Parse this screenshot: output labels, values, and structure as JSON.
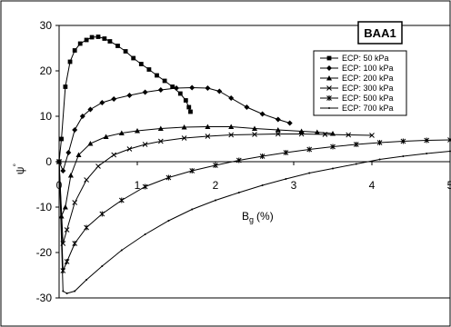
{
  "chart_data": {
    "type": "line",
    "title": "",
    "annotation": "BAA1",
    "xlabel": "B",
    "xlabel_sub": "g",
    "xlabel_unit": "(%)",
    "ylabel": "ψ",
    "ylabel_sup": "°",
    "xlim": [
      0,
      5
    ],
    "ylim": [
      -30,
      30
    ],
    "xticks": [
      "0",
      "1",
      "2",
      "3",
      "4",
      "5"
    ],
    "yticks": [
      "30",
      "20",
      "10",
      "0",
      "-10",
      "-20",
      "-30"
    ],
    "grid": false,
    "legend_position": "top-right",
    "series": [
      {
        "name": "ECP: 50 kPa",
        "marker": "square",
        "x": [
          0.0,
          0.03,
          0.08,
          0.14,
          0.2,
          0.27,
          0.35,
          0.42,
          0.5,
          0.58,
          0.65,
          0.75,
          0.85,
          0.95,
          1.05,
          1.15,
          1.25,
          1.35,
          1.45,
          1.55,
          1.62,
          1.66,
          1.68
        ],
        "y": [
          0.0,
          5.0,
          16.5,
          22.0,
          24.5,
          26.0,
          26.8,
          27.4,
          27.5,
          27.1,
          26.5,
          25.5,
          24.3,
          22.8,
          21.5,
          20.3,
          19.0,
          17.8,
          16.5,
          15.0,
          13.5,
          12.0,
          11.0
        ]
      },
      {
        "name": "ECP: 100 kPa",
        "marker": "diamond",
        "x": [
          0.0,
          0.05,
          0.12,
          0.2,
          0.3,
          0.4,
          0.55,
          0.7,
          0.9,
          1.1,
          1.3,
          1.5,
          1.7,
          1.9,
          2.05,
          2.2,
          2.4,
          2.6,
          2.8,
          2.95
        ],
        "y": [
          0.0,
          -2.0,
          2.0,
          7.0,
          10.0,
          11.5,
          13.0,
          13.8,
          14.6,
          15.3,
          15.8,
          16.2,
          16.3,
          16.2,
          15.5,
          14.0,
          12.0,
          10.5,
          9.3,
          8.5
        ]
      },
      {
        "name": "ECP: 200 kPa",
        "marker": "triangle",
        "x": [
          0.0,
          0.03,
          0.08,
          0.15,
          0.25,
          0.4,
          0.6,
          0.8,
          1.0,
          1.3,
          1.6,
          1.9,
          2.2,
          2.5,
          2.8,
          3.1,
          3.3,
          3.5
        ],
        "y": [
          0.0,
          -12.0,
          -10.0,
          -3.0,
          1.5,
          4.0,
          5.5,
          6.3,
          6.8,
          7.3,
          7.6,
          7.7,
          7.7,
          7.3,
          7.0,
          6.7,
          6.5,
          6.2
        ]
      },
      {
        "name": "ECP: 300 kPa",
        "marker": "x",
        "x": [
          0.0,
          0.05,
          0.1,
          0.2,
          0.35,
          0.5,
          0.7,
          0.9,
          1.1,
          1.3,
          1.6,
          1.9,
          2.2,
          2.5,
          2.8,
          3.1,
          3.4,
          3.7,
          4.0
        ],
        "y": [
          0.0,
          -18.0,
          -15.0,
          -9.0,
          -4.0,
          -1.0,
          1.5,
          2.8,
          3.8,
          4.5,
          5.2,
          5.6,
          5.9,
          6.0,
          6.1,
          6.1,
          6.0,
          5.9,
          5.8
        ]
      },
      {
        "name": "ECP: 500 kPa",
        "marker": "asterisk",
        "x": [
          0.0,
          0.05,
          0.1,
          0.2,
          0.35,
          0.55,
          0.8,
          1.1,
          1.4,
          1.7,
          2.0,
          2.3,
          2.6,
          2.9,
          3.2,
          3.5,
          3.8,
          4.1,
          4.4,
          4.7,
          5.0
        ],
        "y": [
          0.0,
          -24.0,
          -22.0,
          -18.0,
          -14.5,
          -11.5,
          -8.5,
          -5.5,
          -3.5,
          -2.0,
          -0.8,
          0.3,
          1.2,
          2.0,
          2.7,
          3.3,
          3.8,
          4.2,
          4.5,
          4.7,
          4.8
        ]
      },
      {
        "name": "ECP: 700 kPa",
        "marker": "dot",
        "x": [
          0.0,
          0.05,
          0.1,
          0.2,
          0.35,
          0.55,
          0.8,
          1.1,
          1.4,
          1.7,
          2.0,
          2.3,
          2.6,
          2.9,
          3.2,
          3.5,
          3.8,
          4.1,
          4.4,
          4.7,
          5.0
        ],
        "y": [
          0.0,
          -28.5,
          -29.0,
          -28.5,
          -26.0,
          -23.0,
          -19.5,
          -16.0,
          -13.0,
          -10.5,
          -8.5,
          -6.8,
          -5.2,
          -3.8,
          -2.5,
          -1.5,
          -0.5,
          0.5,
          1.2,
          1.8,
          2.3
        ]
      }
    ]
  }
}
